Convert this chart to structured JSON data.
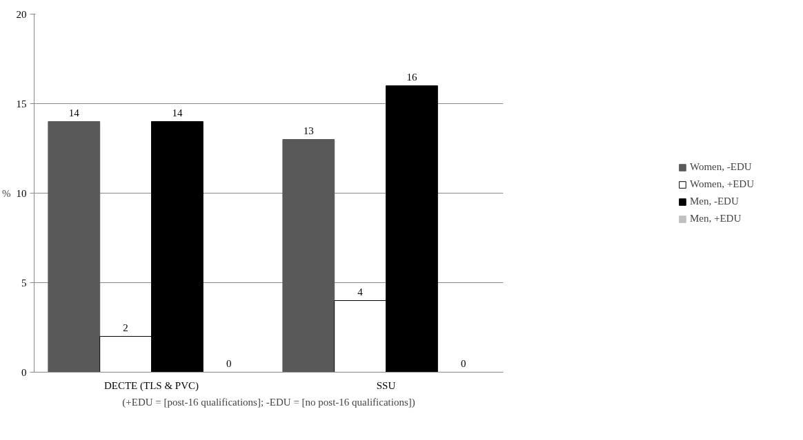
{
  "chart_data": {
    "type": "bar",
    "categories": [
      "DECTE (TLS & PVC)",
      "SSU"
    ],
    "xlabel": "(+EDU = [post-16 qualifications]; -EDU = [no post-16 qualifications])",
    "ylabel": "%",
    "series": [
      {
        "name": "Women, -EDU",
        "color": "#595959",
        "values": [
          14,
          13
        ]
      },
      {
        "name": "Women, +EDU",
        "color": "#ffffff",
        "values": [
          2,
          4
        ]
      },
      {
        "name": "Men, -EDU",
        "color": "#000000",
        "values": [
          14,
          16
        ]
      },
      {
        "name": "Men, +EDU",
        "color": "#c0c0c0",
        "values": [
          0,
          0
        ]
      }
    ],
    "ylim": [
      0,
      20
    ],
    "yticks": [
      0,
      5,
      10,
      15,
      20
    ],
    "grid": "y",
    "legend": "right",
    "data_labels": true
  }
}
